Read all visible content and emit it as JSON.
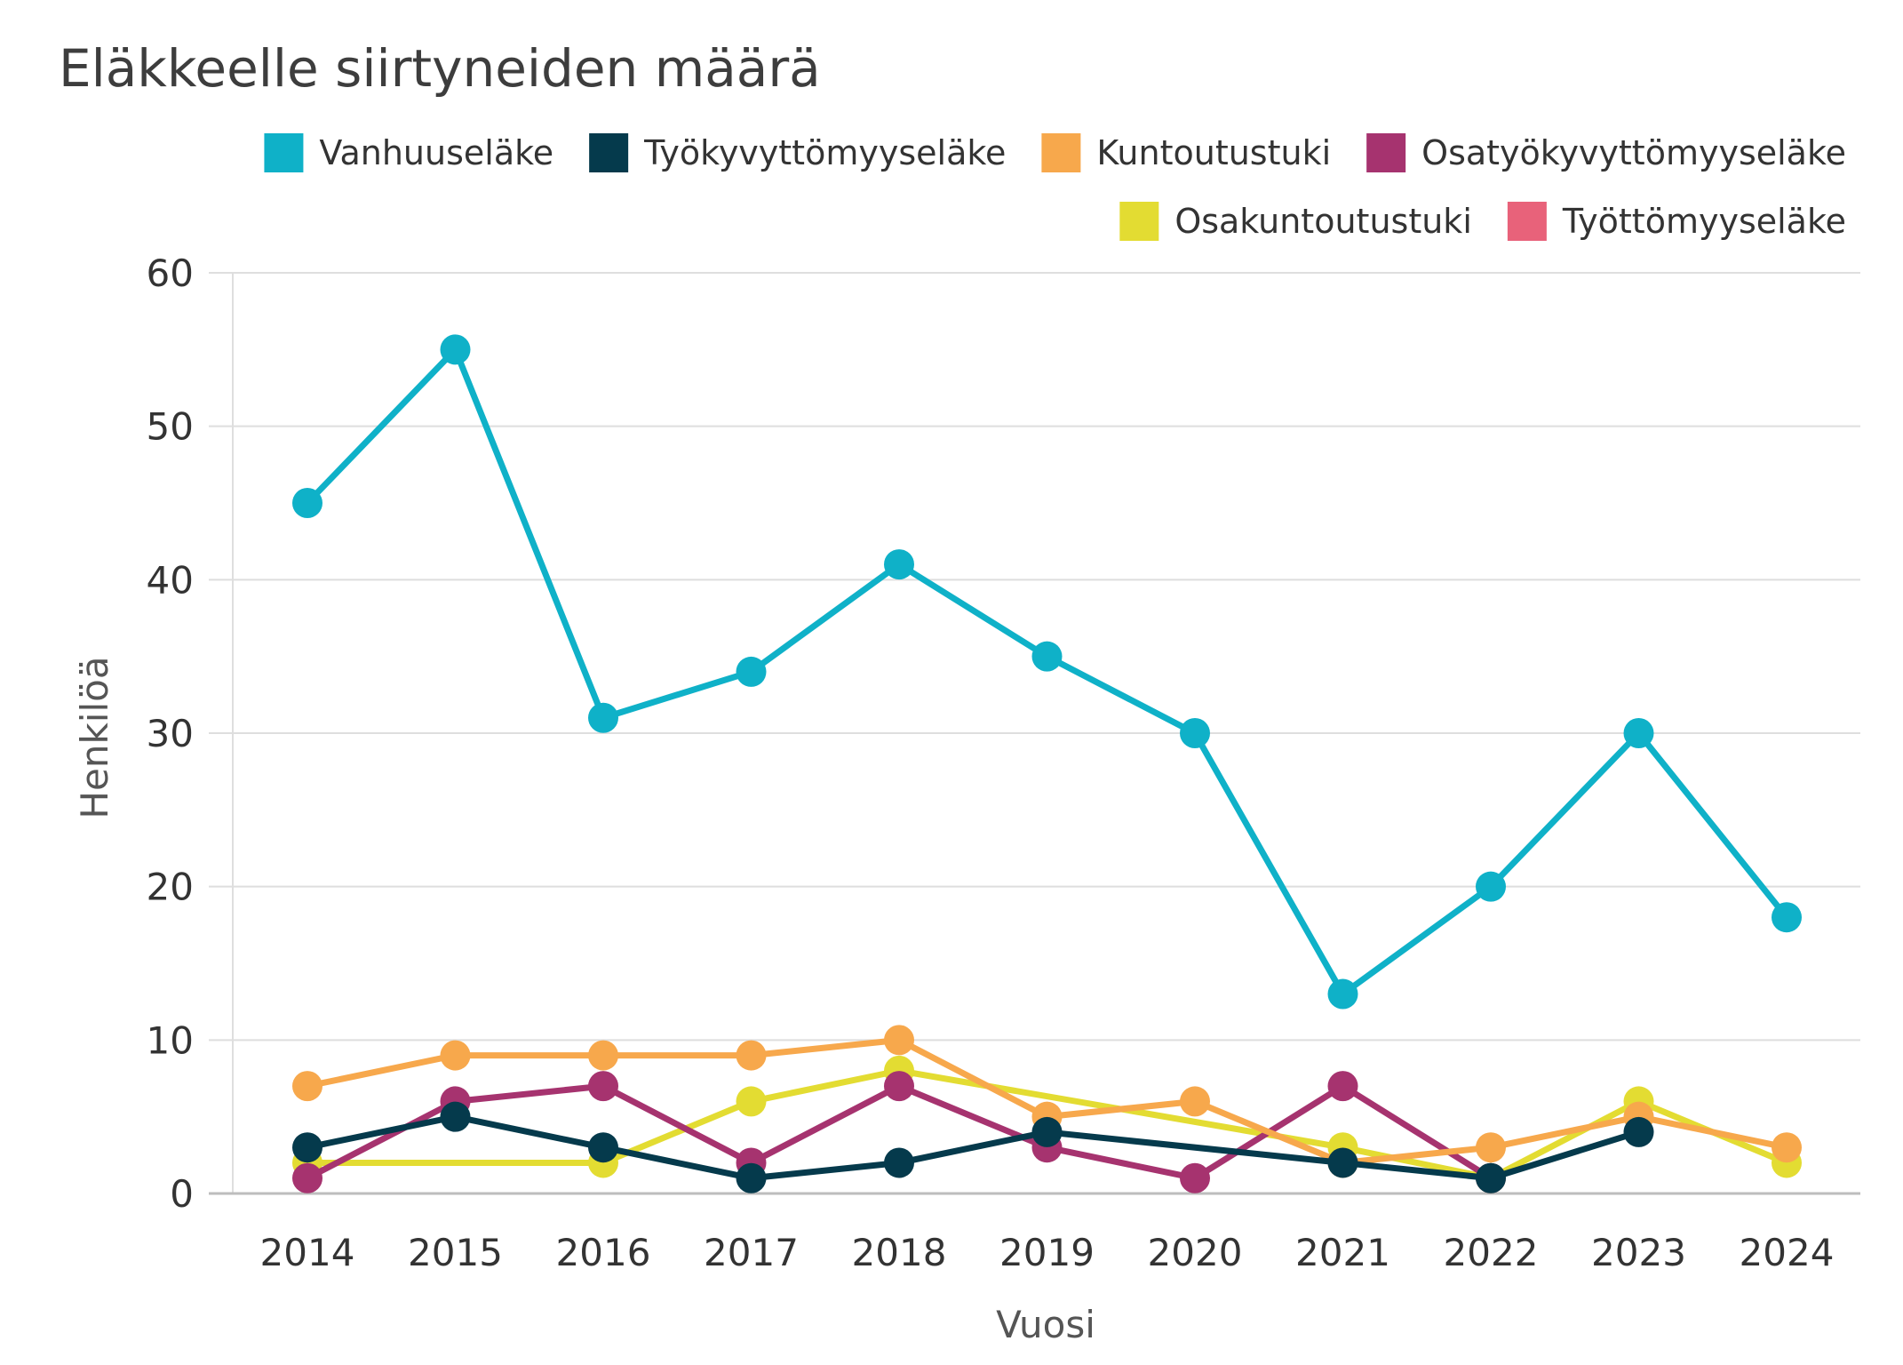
{
  "chart_data": {
    "type": "line",
    "title": "Eläkkeelle siirtyneiden määrä",
    "xlabel": "Vuosi",
    "ylabel": "Henkilöä",
    "ylim": [
      0,
      60
    ],
    "yticks": [
      "0",
      "10",
      "20",
      "30",
      "40",
      "50",
      "60"
    ],
    "grid": true,
    "legend_position": "top-right",
    "categories": [
      "2014",
      "2015",
      "2016",
      "2017",
      "2018",
      "2019",
      "2020",
      "2021",
      "2022",
      "2023",
      "2024"
    ],
    "series": [
      {
        "name": "Vanhuuseläke",
        "color": "#0fb1c8",
        "values": [
          45,
          55,
          31,
          34,
          41,
          35,
          30,
          13,
          20,
          30,
          18
        ]
      },
      {
        "name": "Työkyvyttömyyseläke",
        "color": "#053a4c",
        "values": [
          3,
          5,
          3,
          1,
          2,
          4,
          null,
          2,
          1,
          4,
          null
        ]
      },
      {
        "name": "Kuntoutustuki",
        "color": "#f7a84c",
        "values": [
          7,
          9,
          9,
          9,
          10,
          5,
          6,
          2,
          3,
          5,
          3
        ]
      },
      {
        "name": "Osatyökyvyttömyyseläke",
        "color": "#a6336f",
        "values": [
          1,
          6,
          7,
          2,
          7,
          3,
          1,
          7,
          1,
          null,
          null
        ]
      },
      {
        "name": "Osakuntoutustuki",
        "color": "#e3dc32",
        "values": [
          2,
          null,
          2,
          6,
          8,
          null,
          null,
          3,
          1,
          6,
          2
        ]
      },
      {
        "name": "Työttömyyseläke",
        "color": "#e8627a",
        "values": [
          null,
          null,
          null,
          null,
          null,
          null,
          null,
          null,
          null,
          null,
          null
        ]
      }
    ]
  }
}
